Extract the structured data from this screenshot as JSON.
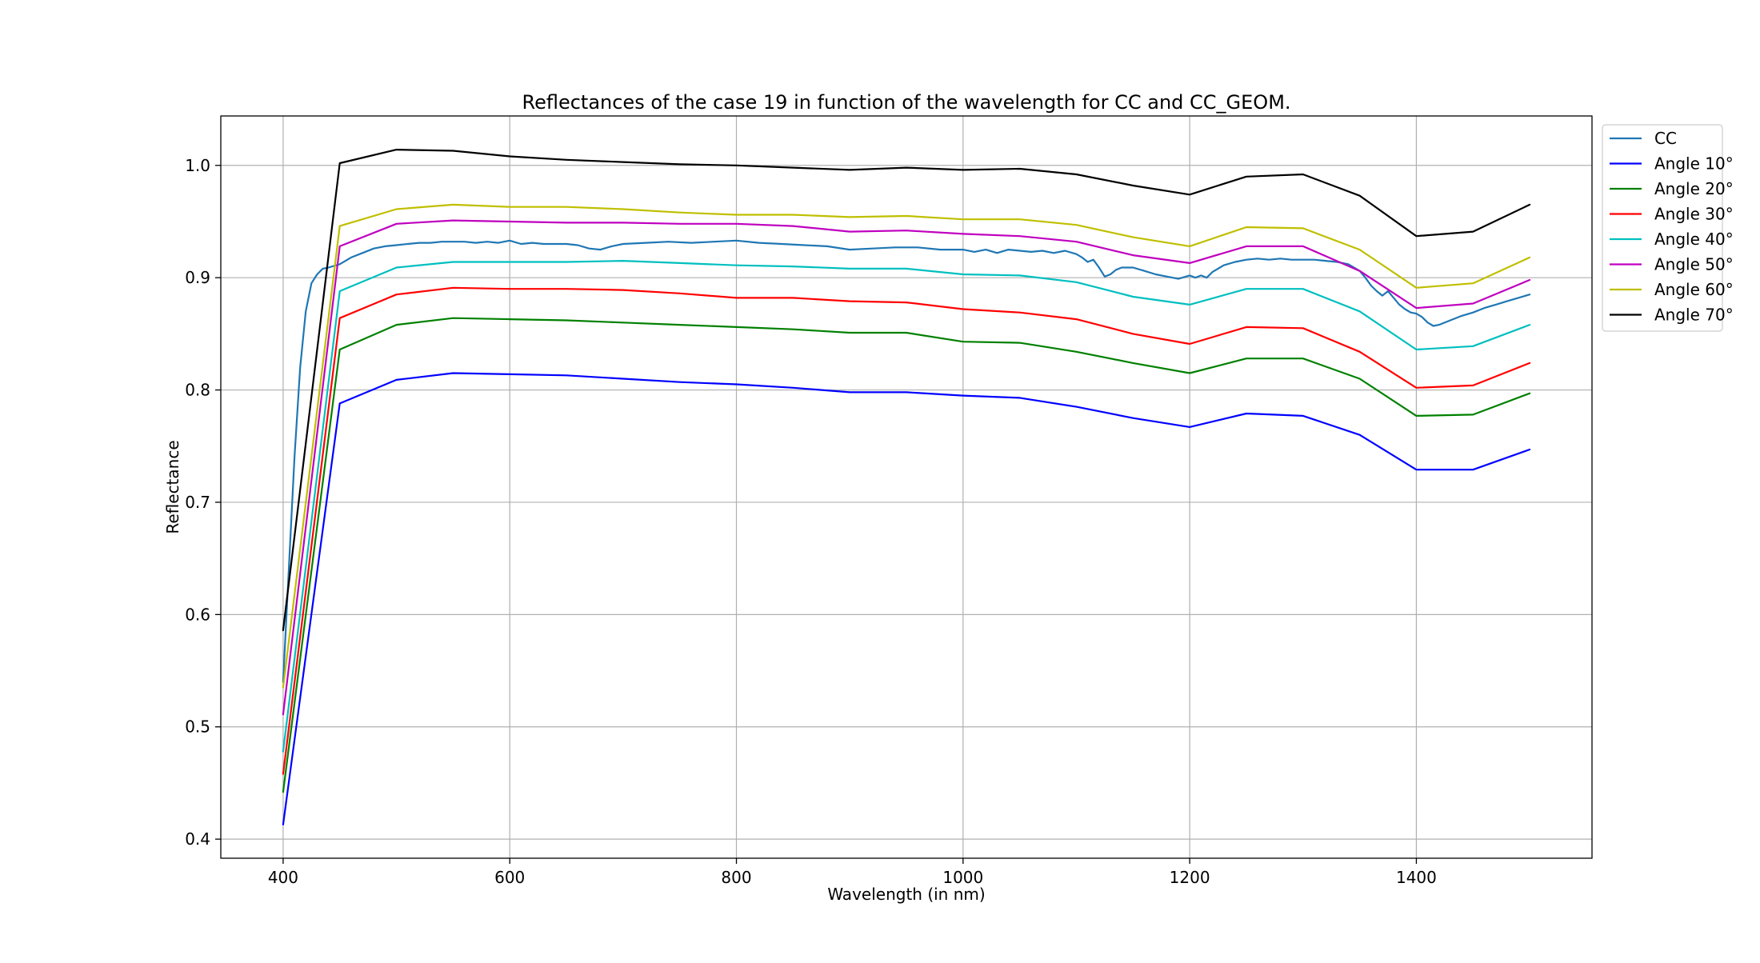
{
  "chart_data": {
    "type": "line",
    "title": "Reflectances of the case 19 in function of the wavelength for CC and CC_GEOM.",
    "xlabel": "Wavelength (in nm)",
    "ylabel": "Reflectance",
    "xlim": [
      345,
      1555
    ],
    "ylim": [
      0.383,
      1.044
    ],
    "xticks": [
      400,
      600,
      800,
      1000,
      1200,
      1400
    ],
    "yticks": [
      0.4,
      0.5,
      0.6,
      0.7,
      0.8,
      0.9,
      1.0
    ],
    "xtick_labels": [
      "400",
      "600",
      "800",
      "1000",
      "1200",
      "1400"
    ],
    "ytick_labels": [
      "0.4",
      "0.5",
      "0.6",
      "0.7",
      "0.8",
      "0.9",
      "1.0"
    ],
    "grid": true,
    "legend": "upper-right-outside",
    "x": [
      400,
      450,
      500,
      550,
      600,
      650,
      700,
      750,
      800,
      850,
      900,
      950,
      1000,
      1050,
      1100,
      1150,
      1200,
      1250,
      1300,
      1350,
      1400,
      1450,
      1500
    ],
    "series": [
      {
        "name": "CC",
        "color": "#1f77b4",
        "x": [
          400,
          405,
          410,
          415,
          420,
          425,
          430,
          435,
          440,
          450,
          460,
          470,
          480,
          490,
          500,
          510,
          520,
          530,
          540,
          550,
          560,
          570,
          580,
          590,
          600,
          610,
          620,
          630,
          640,
          650,
          660,
          670,
          680,
          690,
          700,
          720,
          740,
          760,
          780,
          800,
          820,
          840,
          860,
          880,
          900,
          920,
          940,
          960,
          980,
          1000,
          1010,
          1020,
          1030,
          1040,
          1050,
          1060,
          1070,
          1080,
          1090,
          1100,
          1105,
          1110,
          1115,
          1120,
          1125,
          1130,
          1135,
          1140,
          1150,
          1160,
          1170,
          1180,
          1190,
          1200,
          1205,
          1210,
          1215,
          1220,
          1230,
          1240,
          1250,
          1260,
          1270,
          1280,
          1290,
          1300,
          1310,
          1320,
          1330,
          1340,
          1350,
          1355,
          1360,
          1365,
          1370,
          1375,
          1380,
          1385,
          1390,
          1395,
          1400,
          1405,
          1410,
          1415,
          1420,
          1430,
          1440,
          1450,
          1460,
          1470,
          1480,
          1490,
          1500
        ],
        "values": [
          0.54,
          0.64,
          0.74,
          0.82,
          0.87,
          0.895,
          0.903,
          0.908,
          0.909,
          0.912,
          0.918,
          0.922,
          0.926,
          0.928,
          0.929,
          0.93,
          0.931,
          0.931,
          0.932,
          0.932,
          0.932,
          0.931,
          0.932,
          0.931,
          0.933,
          0.93,
          0.931,
          0.93,
          0.93,
          0.93,
          0.929,
          0.926,
          0.925,
          0.928,
          0.93,
          0.931,
          0.932,
          0.931,
          0.932,
          0.933,
          0.931,
          0.93,
          0.929,
          0.928,
          0.925,
          0.926,
          0.927,
          0.927,
          0.925,
          0.925,
          0.923,
          0.925,
          0.922,
          0.925,
          0.924,
          0.923,
          0.924,
          0.922,
          0.924,
          0.921,
          0.918,
          0.914,
          0.916,
          0.909,
          0.901,
          0.903,
          0.907,
          0.909,
          0.909,
          0.906,
          0.903,
          0.901,
          0.899,
          0.902,
          0.9,
          0.902,
          0.9,
          0.905,
          0.911,
          0.914,
          0.916,
          0.917,
          0.916,
          0.917,
          0.916,
          0.916,
          0.916,
          0.915,
          0.914,
          0.912,
          0.906,
          0.9,
          0.893,
          0.888,
          0.884,
          0.888,
          0.882,
          0.876,
          0.872,
          0.869,
          0.868,
          0.865,
          0.86,
          0.857,
          0.858,
          0.862,
          0.866,
          0.869,
          0.873,
          0.876,
          0.879,
          0.882,
          0.885
        ]
      },
      {
        "name": "Angle 10°",
        "color": "#0000ff",
        "values": [
          0.413,
          0.788,
          0.809,
          0.815,
          0.814,
          0.813,
          0.81,
          0.807,
          0.805,
          0.802,
          0.798,
          0.798,
          0.795,
          0.793,
          0.785,
          0.775,
          0.767,
          0.779,
          0.777,
          0.76,
          0.729,
          0.729,
          0.747
        ]
      },
      {
        "name": "Angle 20°",
        "color": "#008000",
        "values": [
          0.442,
          0.836,
          0.858,
          0.864,
          0.863,
          0.862,
          0.86,
          0.858,
          0.856,
          0.854,
          0.851,
          0.851,
          0.843,
          0.842,
          0.834,
          0.824,
          0.815,
          0.828,
          0.828,
          0.81,
          0.777,
          0.778,
          0.797
        ]
      },
      {
        "name": "Angle 30°",
        "color": "#ff0000",
        "values": [
          0.458,
          0.864,
          0.885,
          0.891,
          0.89,
          0.89,
          0.889,
          0.886,
          0.882,
          0.882,
          0.879,
          0.878,
          0.872,
          0.869,
          0.863,
          0.85,
          0.841,
          0.856,
          0.855,
          0.834,
          0.802,
          0.804,
          0.824
        ]
      },
      {
        "name": "Angle 40°",
        "color": "#00bfbf",
        "values": [
          0.478,
          0.888,
          0.909,
          0.914,
          0.914,
          0.914,
          0.915,
          0.913,
          0.911,
          0.91,
          0.908,
          0.908,
          0.903,
          0.902,
          0.896,
          0.883,
          0.876,
          0.89,
          0.89,
          0.87,
          0.836,
          0.839,
          0.858
        ]
      },
      {
        "name": "Angle 50°",
        "color": "#bf00bf",
        "values": [
          0.511,
          0.928,
          0.948,
          0.951,
          0.95,
          0.949,
          0.949,
          0.948,
          0.948,
          0.946,
          0.941,
          0.942,
          0.939,
          0.937,
          0.932,
          0.92,
          0.913,
          0.928,
          0.928,
          0.906,
          0.873,
          0.877,
          0.898
        ]
      },
      {
        "name": "Angle 60°",
        "color": "#bfbf00",
        "values": [
          0.535,
          0.946,
          0.961,
          0.965,
          0.963,
          0.963,
          0.961,
          0.958,
          0.956,
          0.956,
          0.954,
          0.955,
          0.952,
          0.952,
          0.947,
          0.936,
          0.928,
          0.945,
          0.944,
          0.925,
          0.891,
          0.895,
          0.918
        ]
      },
      {
        "name": "Angle 70°",
        "color": "#000000",
        "values": [
          0.586,
          1.002,
          1.014,
          1.013,
          1.008,
          1.005,
          1.003,
          1.001,
          1.0,
          0.998,
          0.996,
          0.998,
          0.996,
          0.997,
          0.992,
          0.982,
          0.974,
          0.99,
          0.992,
          0.973,
          0.937,
          0.941,
          0.965
        ]
      }
    ]
  }
}
